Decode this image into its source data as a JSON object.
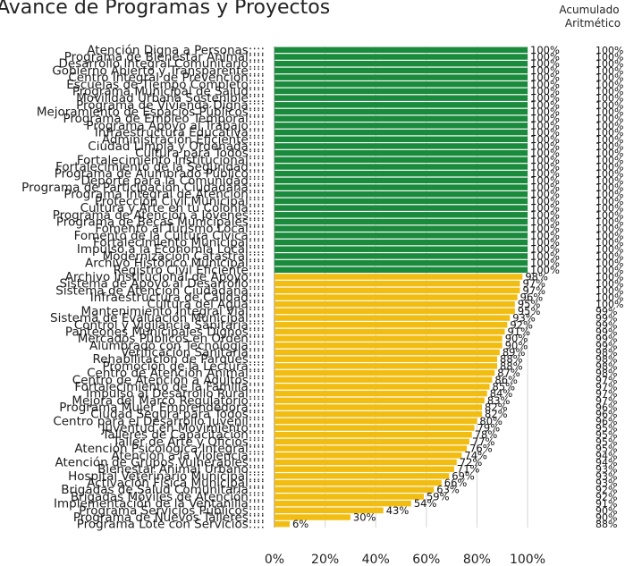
{
  "chart_data": {
    "type": "bar",
    "orientation": "horizontal",
    "title": "Avance de Programas y Proyectos",
    "side_header": [
      "Acumulado",
      "Aritmético"
    ],
    "xlim": [
      0,
      100
    ],
    "x_ticks": [
      "0%",
      "20%",
      "40%",
      "60%",
      "80%",
      "100%"
    ],
    "grid": true,
    "legend": "none",
    "colors": {
      "complete": "#1a8a3c",
      "partial": "#f2bd12",
      "gridline": "#d4d4d4",
      "axis": "#7d7d7d"
    },
    "categories": [
      "Atención Digna a Personas",
      "Programa de Bienestar Animal",
      "Desarrollo Integral Comunitario",
      "Gobierno Abierto y Transparente",
      "Centro Integral de Prevención",
      "Escuelas de Tiempo Completo",
      "Programa Municipal de Salud",
      "Movilidad Urbana Sostenible",
      "Programa de Vivienda Digna",
      "Mejoramiento de Espacios Públicos",
      "Programa de Empleo Temporal",
      "Programa Apoyo al Trabajo",
      "Infraestructura Educativa",
      "Administración Eficiente",
      "Ciudad Limpia y Ordenada",
      "Cultura para Todos",
      "Fortalecimiento Institucional",
      "Fortalecimiento de la Seguridad",
      "Programa de Alumbrado Público",
      "Deporte para la Comunidad",
      "Programa de Participación Ciudadana",
      "Programa Integral de Atención",
      "Protección Civil Municipal",
      "Cultura y Arte en tu Colonia",
      "Programa de Atención a Jóvenes",
      "Programa de Becas Municipales",
      "Fomento al Turismo Local",
      "Fomento de la Cultura Cívica",
      "Fortalecimiento Municipal",
      "Impulso a la Economía Local",
      "Modernización Catastral",
      "Archivo Histórico Municipal",
      "Registro Civil Eficiente",
      "Archivo Institucional de Apoyo",
      "Sistema de Apoyo al Desarrollo",
      "Sistema de Atención Ciudadana",
      "Infraestructura de Calidad",
      "Cultura del Agua",
      "Mantenimiento Integral Vial",
      "Sistema de Evaluación Municipal",
      "Control y Vigilancia Sanitaria",
      "Panteones Municipales Dignos",
      "Mercados Públicos en Orden",
      "Alumbrado con Tecnología",
      "Verificación Sanitaria",
      "Rehabilitación de Parques",
      "Promoción de la Lectura",
      "Centro de Atención Animal",
      "Centro de Atención a Adultos",
      "Fortalecimiento de la Familia",
      "Impulso al Desarrollo Rural",
      "Mejora del Marco Regulatorio",
      "Programa Mujer Emprendedora",
      "Ciudad Segura para Todos",
      "Centro para el Desarrollo Juvenil",
      "Juventud en Movimiento",
      "Talleres de Capacitación",
      "Taller de Arte y Oficios",
      "Atención Psicológica Integral",
      "Atención a la Violencia",
      "Atención de Grupos Vulnerables",
      "Bienestar Animal Urbano",
      "Hospital Veterinario Municipal",
      "Activación Física Municipal",
      "Brigadas de Salud Comunitaria",
      "Brigadas Móviles de Atención",
      "Implementación de la Ventanilla",
      "Programa Servicios Públicos",
      "Programa de Nuevos Talleres",
      "Programa Lote con Servicios"
    ],
    "values": [
      100,
      100,
      100,
      100,
      100,
      100,
      100,
      100,
      100,
      100,
      100,
      100,
      100,
      100,
      100,
      100,
      100,
      100,
      100,
      100,
      100,
      100,
      100,
      100,
      100,
      100,
      100,
      100,
      100,
      100,
      100,
      100,
      100,
      98,
      97,
      97,
      96,
      95,
      95,
      93,
      92,
      91,
      90,
      90,
      89,
      88,
      88,
      87,
      86,
      85,
      84,
      83,
      82,
      82,
      80,
      79,
      78,
      77,
      76,
      74,
      72,
      71,
      69,
      66,
      63,
      59,
      54,
      43,
      30,
      6
    ]
  }
}
